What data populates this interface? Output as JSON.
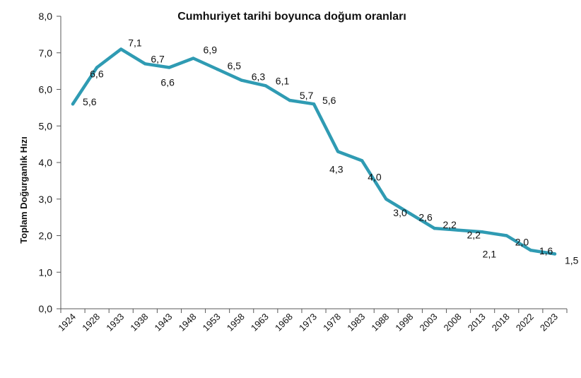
{
  "chart_data": {
    "type": "line",
    "title": "Cumhuriyet tarihi boyunca doğum oranları",
    "ylabel": "Toplam Doğurganlık Hızı",
    "xlabel": "",
    "ylim": [
      0,
      8
    ],
    "ytick_labels": [
      "0,0",
      "1,0",
      "2,0",
      "3,0",
      "4,0",
      "5,0",
      "6,0",
      "7,0",
      "8,0"
    ],
    "grid": false,
    "legend": "none",
    "line_color": "#2f9bb3",
    "categories": [
      "1924",
      "1928",
      "1933",
      "1938",
      "1943",
      "1948",
      "1953",
      "1958",
      "1963",
      "1968",
      "1973",
      "1978",
      "1983",
      "1988",
      "1998",
      "2003",
      "2008",
      "2013",
      "2018",
      "2022",
      "2023"
    ],
    "values": [
      5.6,
      6.6,
      7.1,
      6.7,
      6.6,
      6.85,
      6.55,
      6.25,
      6.1,
      5.7,
      5.6,
      4.3,
      4.05,
      3.0,
      2.6,
      2.2,
      2.15,
      2.1,
      2.0,
      1.6,
      1.5
    ],
    "data_labels": [
      "5,6",
      "6,6",
      "7,1",
      "6,7",
      "6,6",
      "6,9",
      "6,5",
      "6,3",
      "6,1",
      "5,7",
      "5,6",
      "4,3",
      "4,0",
      "3,0",
      "2,6",
      "2,2",
      "2,2",
      "2,1",
      "2,0",
      "1,6",
      "1,5"
    ]
  }
}
